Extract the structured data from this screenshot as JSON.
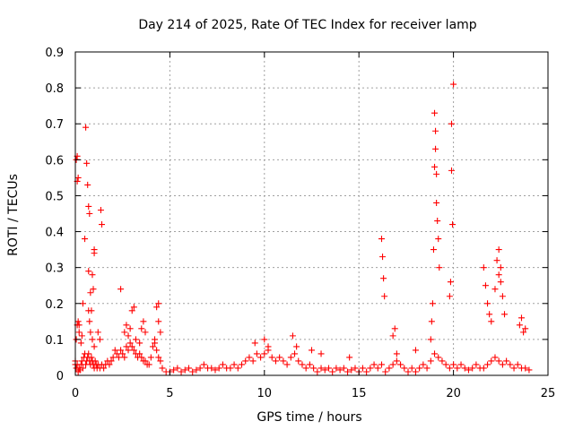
{
  "chart_data": {
    "type": "scatter",
    "title": "Day 214 of 2025, Rate Of TEC Index for receiver lamp",
    "xlabel": "GPS time / hours",
    "ylabel": "ROTI / TECUs",
    "xlim": [
      0,
      25
    ],
    "ylim": [
      0,
      0.9
    ],
    "xticks": [
      "0",
      "5",
      "10",
      "15",
      "20",
      "25"
    ],
    "yticks": [
      "0",
      "0.1",
      "0.2",
      "0.3",
      "0.4",
      "0.5",
      "0.6",
      "0.7",
      "0.8",
      "0.9"
    ],
    "grid": true,
    "marker": "+",
    "color": "#ff0000",
    "series": [
      {
        "x": [
          0.05,
          0.1,
          0.15,
          0.2,
          0.25,
          0.3,
          0.35,
          0.4,
          0.45,
          0.5,
          0.55,
          0.6,
          0.65,
          0.7,
          0.75,
          0.8,
          0.85,
          0.9,
          0.95,
          1.0,
          1.05,
          1.1,
          1.15,
          1.2,
          1.3,
          1.4,
          1.5,
          1.6,
          1.7,
          1.8,
          1.9,
          2.0,
          2.1,
          2.2,
          2.3,
          2.4,
          2.5,
          2.6,
          2.7,
          2.8,
          2.9,
          3.0,
          3.1,
          3.2,
          3.3,
          3.4,
          3.5,
          3.6,
          3.7,
          3.8,
          3.9,
          4.0,
          4.1,
          4.2,
          4.3,
          4.4,
          4.5,
          4.6,
          4.8,
          5.0,
          5.2,
          5.4,
          5.6,
          5.8,
          6.0,
          6.2,
          6.4,
          6.6,
          6.8,
          7.0,
          7.2,
          7.4,
          7.6,
          7.8,
          8.0,
          8.2,
          8.4,
          8.6,
          8.8,
          9.0,
          9.2,
          9.4,
          9.6,
          9.8,
          10.0,
          10.2,
          10.4,
          10.6,
          10.8,
          11.0,
          11.2,
          11.4,
          11.6,
          11.8,
          12.0,
          12.2,
          12.4,
          12.6,
          12.8,
          13.0,
          13.2,
          13.4,
          13.6,
          13.8,
          14.0,
          14.2,
          14.4,
          14.6,
          14.8,
          15.0,
          15.2,
          15.4,
          15.6,
          15.8,
          16.0,
          16.2,
          16.4,
          16.6,
          16.8,
          17.0,
          17.2,
          17.4,
          17.6,
          17.8,
          18.0,
          18.2,
          18.4,
          18.6,
          18.8,
          19.0,
          19.2,
          19.4,
          19.6,
          19.8,
          20.0,
          20.2,
          20.4,
          20.6,
          20.8,
          21.0,
          21.2,
          21.4,
          21.6,
          21.8,
          22.0,
          22.2,
          22.4,
          22.6,
          22.8,
          23.0,
          23.2,
          23.4,
          23.6,
          23.8,
          24.0,
          0.05,
          0.1,
          0.2,
          0.3,
          0.35,
          0.4,
          0.7,
          0.75,
          0.8,
          0.9,
          1.0,
          1.2,
          1.3,
          0.0,
          0.0,
          0.05,
          0.1,
          0.1,
          0.15,
          0.15,
          0.2,
          0.5,
          0.55,
          0.6,
          0.65,
          0.7,
          0.7,
          0.75,
          0.8,
          0.85,
          0.9,
          0.95,
          1.0,
          1.0,
          1.35,
          1.4,
          2.4,
          2.6,
          2.7,
          2.8,
          2.9,
          3.0,
          3.1,
          3.2,
          3.4,
          3.5,
          3.6,
          3.7,
          4.2,
          4.3,
          4.4,
          4.4,
          4.5,
          16.2,
          16.25,
          16.3,
          16.35,
          16.8,
          16.9,
          18.8,
          18.85,
          18.9,
          18.95,
          19.0,
          19.0,
          19.05,
          19.05,
          19.1,
          19.1,
          19.15,
          19.2,
          19.25,
          19.8,
          19.85,
          19.9,
          19.9,
          19.95,
          20.0,
          21.6,
          21.7,
          21.8,
          21.9,
          22.0,
          22.2,
          22.3,
          22.4,
          22.4,
          22.5,
          22.5,
          22.6,
          22.7,
          23.5,
          23.6,
          23.7,
          23.8,
          9.5,
          10.0,
          10.2,
          11.5,
          11.7,
          12.5,
          13.0,
          14.5,
          17.0,
          18.0
        ],
        "y": [
          0.02,
          0.03,
          0.01,
          0.02,
          0.015,
          0.03,
          0.04,
          0.02,
          0.05,
          0.06,
          0.03,
          0.04,
          0.05,
          0.06,
          0.04,
          0.03,
          0.05,
          0.04,
          0.03,
          0.02,
          0.04,
          0.03,
          0.02,
          0.03,
          0.02,
          0.03,
          0.02,
          0.03,
          0.04,
          0.03,
          0.04,
          0.05,
          0.07,
          0.06,
          0.05,
          0.07,
          0.06,
          0.05,
          0.08,
          0.07,
          0.09,
          0.08,
          0.07,
          0.06,
          0.05,
          0.06,
          0.05,
          0.04,
          0.04,
          0.03,
          0.03,
          0.05,
          0.08,
          0.09,
          0.07,
          0.05,
          0.04,
          0.02,
          0.01,
          0.01,
          0.015,
          0.02,
          0.01,
          0.015,
          0.02,
          0.01,
          0.015,
          0.02,
          0.03,
          0.02,
          0.02,
          0.015,
          0.02,
          0.03,
          0.02,
          0.02,
          0.03,
          0.02,
          0.03,
          0.04,
          0.05,
          0.04,
          0.06,
          0.05,
          0.06,
          0.07,
          0.05,
          0.04,
          0.05,
          0.04,
          0.03,
          0.05,
          0.06,
          0.04,
          0.03,
          0.02,
          0.03,
          0.02,
          0.01,
          0.02,
          0.015,
          0.02,
          0.01,
          0.02,
          0.015,
          0.02,
          0.01,
          0.015,
          0.02,
          0.01,
          0.02,
          0.01,
          0.02,
          0.03,
          0.02,
          0.03,
          0.01,
          0.02,
          0.03,
          0.04,
          0.03,
          0.02,
          0.01,
          0.02,
          0.01,
          0.02,
          0.03,
          0.02,
          0.04,
          0.06,
          0.05,
          0.04,
          0.03,
          0.02,
          0.03,
          0.02,
          0.03,
          0.02,
          0.015,
          0.02,
          0.03,
          0.02,
          0.02,
          0.03,
          0.04,
          0.05,
          0.04,
          0.03,
          0.04,
          0.03,
          0.02,
          0.03,
          0.02,
          0.02,
          0.015,
          0.1,
          0.14,
          0.12,
          0.09,
          0.11,
          0.2,
          0.18,
          0.15,
          0.12,
          0.1,
          0.08,
          0.12,
          0.1,
          0.04,
          0.03,
          0.6,
          0.61,
          0.54,
          0.55,
          0.15,
          0.14,
          0.38,
          0.69,
          0.59,
          0.53,
          0.47,
          0.29,
          0.45,
          0.23,
          0.18,
          0.28,
          0.24,
          0.35,
          0.34,
          0.46,
          0.42,
          0.24,
          0.12,
          0.14,
          0.11,
          0.13,
          0.18,
          0.19,
          0.1,
          0.09,
          0.13,
          0.15,
          0.12,
          0.1,
          0.19,
          0.2,
          0.15,
          0.12,
          0.38,
          0.33,
          0.27,
          0.22,
          0.11,
          0.13,
          0.1,
          0.15,
          0.2,
          0.35,
          0.58,
          0.73,
          0.68,
          0.63,
          0.56,
          0.48,
          0.43,
          0.38,
          0.3,
          0.22,
          0.26,
          0.57,
          0.7,
          0.42,
          0.81,
          0.3,
          0.25,
          0.2,
          0.17,
          0.15,
          0.24,
          0.32,
          0.35,
          0.28,
          0.3,
          0.26,
          0.22,
          0.17,
          0.14,
          0.16,
          0.12,
          0.13,
          0.09,
          0.1,
          0.08,
          0.11,
          0.08,
          0.07,
          0.06,
          0.05,
          0.06,
          0.07
        ]
      }
    ]
  }
}
